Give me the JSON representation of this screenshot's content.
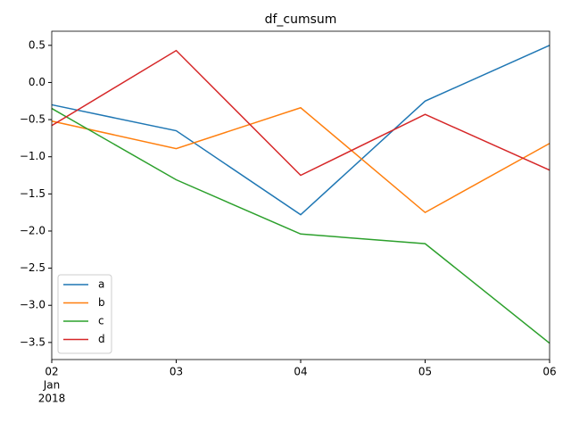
{
  "chart_data": {
    "type": "line",
    "title": "df_cumsum",
    "x": [
      "2018-01-02",
      "2018-01-03",
      "2018-01-04",
      "2018-01-05",
      "2018-01-06"
    ],
    "xlim": [
      "2018-01-02",
      "2018-01-06"
    ],
    "xticks": [
      {
        "value": "2018-01-02",
        "label": "02"
      },
      {
        "value": "2018-01-03",
        "label": "03"
      },
      {
        "value": "2018-01-04",
        "label": "04"
      },
      {
        "value": "2018-01-05",
        "label": "05"
      },
      {
        "value": "2018-01-06",
        "label": "06"
      }
    ],
    "x_month_label": "Jan",
    "x_year_label": "2018",
    "ylim": [
      -3.73,
      0.69
    ],
    "yticks": [
      0.5,
      {
        "value": 0,
        "label": "0.0"
      },
      {
        "value": -0.5,
        "label": "−0.5"
      },
      {
        "value": -1,
        "label": "−1.0"
      },
      {
        "value": -1.5,
        "label": "−1.5"
      },
      {
        "value": -2,
        "label": "−2.0"
      },
      {
        "value": -2.5,
        "label": "−2.5"
      },
      {
        "value": -3,
        "label": "−3.0"
      },
      {
        "value": -3.5,
        "label": "−3.5"
      }
    ],
    "grid": false,
    "legend": "lower left",
    "series": [
      {
        "name": "a",
        "color": "#1f77b4",
        "values": [
          -0.3,
          -0.65,
          -1.78,
          -0.25,
          0.5
        ]
      },
      {
        "name": "b",
        "color": "#ff7f0e",
        "values": [
          -0.52,
          -0.89,
          -0.34,
          -1.75,
          -0.82
        ]
      },
      {
        "name": "c",
        "color": "#2ca02c",
        "values": [
          -0.35,
          -1.31,
          -2.04,
          -2.17,
          -3.51
        ]
      },
      {
        "name": "d",
        "color": "#d62728",
        "values": [
          -0.58,
          0.43,
          -1.25,
          -0.43,
          -1.18
        ]
      }
    ]
  }
}
